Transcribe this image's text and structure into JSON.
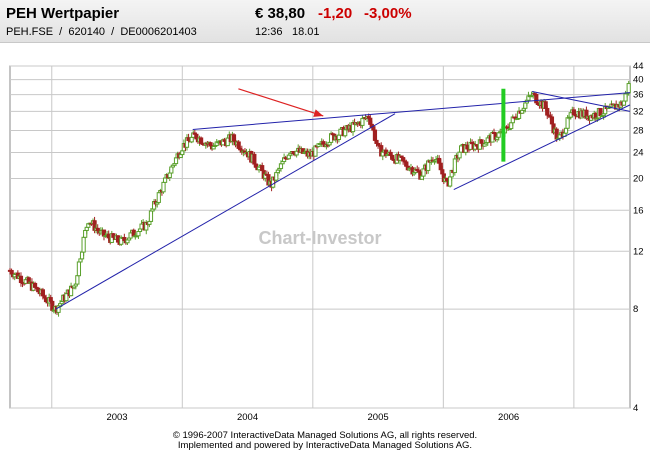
{
  "header": {
    "name": "PEH Wertpapier",
    "ids": "PEH.FSE  /  620140  /  DE0006201403",
    "price": "€ 38,80",
    "change": "-1,20",
    "change_pct": "-3,00%",
    "time": "12:36",
    "date": "18.01"
  },
  "watermark": "Chart-Investor",
  "footer": {
    "line1": "© 1996-2007 InteractiveData Managed Solutions  AG, all rights reserved.",
    "line2": "Implemented and powered by  InteractiveData Managed Solutions  AG."
  },
  "colors": {
    "up_candle": "#5aa02c",
    "down_candle": "#a02020",
    "trend_line": "#2222aa",
    "arrow": "#dd2222",
    "marker": "#22cc22",
    "grid": "#c8c8c8"
  },
  "chart_data": {
    "type": "candlestick",
    "x_labels": [
      "2003",
      "2004",
      "2005",
      "2006"
    ],
    "y_scale": "log",
    "y_ticks": [
      4,
      8,
      12,
      16,
      20,
      24,
      28,
      32,
      36,
      40,
      44
    ],
    "y_range": [
      4,
      44
    ],
    "x_range": [
      2002.3,
      2007.05
    ],
    "grid": true,
    "series": [
      {
        "x": 2002.3,
        "y": 10.5
      },
      {
        "x": 2002.5,
        "y": 9.2
      },
      {
        "x": 2002.65,
        "y": 8.0
      },
      {
        "x": 2002.8,
        "y": 9.5
      },
      {
        "x": 2002.9,
        "y": 15.0
      },
      {
        "x": 2003.0,
        "y": 13.5
      },
      {
        "x": 2003.15,
        "y": 12.8
      },
      {
        "x": 2003.35,
        "y": 14.5
      },
      {
        "x": 2003.5,
        "y": 20.0
      },
      {
        "x": 2003.62,
        "y": 25.0
      },
      {
        "x": 2003.72,
        "y": 27.0
      },
      {
        "x": 2003.85,
        "y": 25.0
      },
      {
        "x": 2004.0,
        "y": 26.5
      },
      {
        "x": 2004.12,
        "y": 24.0
      },
      {
        "x": 2004.3,
        "y": 19.0
      },
      {
        "x": 2004.45,
        "y": 24.5
      },
      {
        "x": 2004.6,
        "y": 23.5
      },
      {
        "x": 2004.75,
        "y": 26.5
      },
      {
        "x": 2004.95,
        "y": 29.0
      },
      {
        "x": 2005.05,
        "y": 31.0
      },
      {
        "x": 2005.12,
        "y": 24.5
      },
      {
        "x": 2005.3,
        "y": 22.5
      },
      {
        "x": 2005.45,
        "y": 20.5
      },
      {
        "x": 2005.55,
        "y": 23.5
      },
      {
        "x": 2005.65,
        "y": 19.0
      },
      {
        "x": 2005.75,
        "y": 24.5
      },
      {
        "x": 2005.9,
        "y": 25.5
      },
      {
        "x": 2006.1,
        "y": 28.0
      },
      {
        "x": 2006.3,
        "y": 36.0
      },
      {
        "x": 2006.4,
        "y": 33.0
      },
      {
        "x": 2006.5,
        "y": 26.0
      },
      {
        "x": 2006.62,
        "y": 32.0
      },
      {
        "x": 2006.75,
        "y": 31.0
      },
      {
        "x": 2006.9,
        "y": 32.5
      },
      {
        "x": 2007.0,
        "y": 34.0
      },
      {
        "x": 2007.05,
        "y": 39.5
      }
    ],
    "trend_lines": [
      {
        "x1": 2002.65,
        "y1": 8.0,
        "x2": 2005.25,
        "y2": 31.5
      },
      {
        "x1": 2003.7,
        "y1": 28.2,
        "x2": 2007.05,
        "y2": 36.5
      },
      {
        "x1": 2005.7,
        "y1": 18.5,
        "x2": 2007.05,
        "y2": 33.5
      },
      {
        "x1": 2006.3,
        "y1": 36.8,
        "x2": 2007.05,
        "y2": 32.0
      }
    ],
    "arrow": {
      "x1": 2004.05,
      "y1": 37.5,
      "x2": 2004.7,
      "y2": 31.0
    },
    "marker": {
      "x": 2006.08,
      "y1": 22.5,
      "y2": 37.5
    }
  }
}
